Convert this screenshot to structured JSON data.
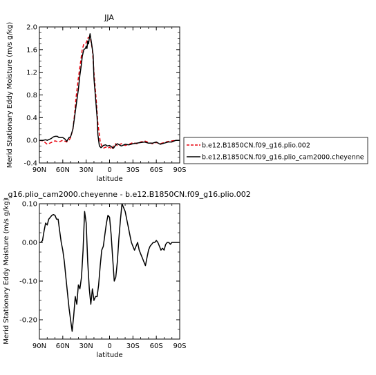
{
  "chart_data": [
    {
      "type": "line",
      "title": "JJA",
      "xlabel": "latitude",
      "ylabel": "Merid Stationary Eddy Moisture (m/s g/kg)",
      "xlim": [
        90,
        -90
      ],
      "ylim": [
        -0.4,
        2.0
      ],
      "xticks": [
        90,
        60,
        30,
        0,
        -30,
        -60,
        -90
      ],
      "xtick_labels": [
        "90N",
        "60N",
        "30N",
        "0",
        "30S",
        "60S",
        "90S"
      ],
      "yticks": [
        -0.4,
        0.0,
        0.4,
        0.8,
        1.2,
        1.6,
        2.0
      ],
      "ytick_labels": [
        "-0.4",
        "0.0",
        "0.4",
        "0.8",
        "1.2",
        "1.6",
        "2.0"
      ],
      "legend_position": "right",
      "series": [
        {
          "name": "b.e12.B1850CN.f09_g16.plio.002",
          "color": "#e8000b",
          "dash": "dashed",
          "x": [
            90,
            85,
            80,
            75,
            70,
            65,
            60,
            55,
            52,
            50,
            47,
            45,
            43,
            40,
            37,
            35,
            33,
            30,
            28,
            25,
            22,
            20,
            17,
            15,
            12,
            10,
            8,
            5,
            2,
            0,
            -3,
            -5,
            -8,
            -10,
            -15,
            -20,
            -25,
            -30,
            -35,
            -40,
            -45,
            -50,
            -55,
            -60,
            -65,
            -70,
            -75,
            -80,
            -85,
            -90
          ],
          "y": [
            0.0,
            -0.01,
            -0.07,
            -0.04,
            -0.01,
            -0.03,
            0.0,
            -0.03,
            0.0,
            0.05,
            0.2,
            0.45,
            0.75,
            1.1,
            1.4,
            1.6,
            1.7,
            1.72,
            1.8,
            1.83,
            1.6,
            1.2,
            0.7,
            0.3,
            -0.02,
            -0.1,
            -0.14,
            -0.12,
            -0.14,
            -0.12,
            -0.16,
            -0.1,
            -0.06,
            -0.1,
            -0.06,
            -0.09,
            -0.07,
            -0.04,
            -0.06,
            -0.03,
            -0.01,
            -0.04,
            -0.06,
            -0.04,
            -0.06,
            -0.04,
            -0.02,
            -0.01,
            0.0,
            0.0
          ]
        },
        {
          "name": "b.e12.B1850CN.f09_g16.plio_cam2000.cheyenne",
          "color": "#000000",
          "dash": "solid",
          "x": [
            90,
            85,
            82,
            80,
            75,
            72,
            70,
            67,
            65,
            62,
            60,
            57,
            55,
            52,
            50,
            47,
            45,
            43,
            40,
            38,
            36,
            35,
            33,
            31,
            30,
            29,
            28,
            27,
            26,
            25,
            23,
            21,
            20,
            18,
            16,
            15,
            13,
            11,
            10,
            8,
            5,
            3,
            0,
            -3,
            -5,
            -8,
            -10,
            -15,
            -20,
            -25,
            -30,
            -35,
            -40,
            -45,
            -50,
            -55,
            -60,
            -65,
            -70,
            -75,
            -80,
            -85,
            -90
          ],
          "y": [
            0.0,
            0.0,
            0.01,
            0.0,
            0.03,
            0.06,
            0.07,
            0.07,
            0.05,
            0.05,
            0.05,
            0.02,
            -0.02,
            0.05,
            0.06,
            0.2,
            0.4,
            0.6,
            0.9,
            1.15,
            1.35,
            1.48,
            1.6,
            1.62,
            1.66,
            1.62,
            1.75,
            1.7,
            1.8,
            1.88,
            1.7,
            1.5,
            1.1,
            0.75,
            0.4,
            0.1,
            -0.1,
            -0.13,
            -0.12,
            -0.09,
            -0.08,
            -0.1,
            -0.09,
            -0.12,
            -0.14,
            -0.08,
            -0.06,
            -0.1,
            -0.07,
            -0.08,
            -0.06,
            -0.05,
            -0.04,
            -0.03,
            -0.05,
            -0.05,
            -0.03,
            -0.07,
            -0.05,
            -0.03,
            -0.03,
            0.0,
            0.0
          ]
        }
      ]
    },
    {
      "type": "line",
      "title": "_g16.plio_cam2000.cheyenne - b.e12.B1850CN.f09_g16.plio.002",
      "xlabel": "latitude",
      "ylabel": "Merid Stationary Eddy Moisture (m/s g/kg)",
      "xlim": [
        90,
        -90
      ],
      "ylim": [
        -0.25,
        0.1
      ],
      "xticks": [
        90,
        60,
        30,
        0,
        -30,
        -60,
        -90
      ],
      "xtick_labels": [
        "90N",
        "60N",
        "30N",
        "0",
        "30S",
        "60S",
        "90S"
      ],
      "yticks": [
        -0.2,
        -0.1,
        0.0,
        0.1
      ],
      "ytick_labels": [
        "-0.20",
        "-0.10",
        "0.00",
        "0.10"
      ],
      "series": [
        {
          "color": "#000000",
          "x": [
            90,
            88,
            86,
            84,
            82,
            80,
            78,
            76,
            74,
            72,
            70,
            68,
            66,
            64,
            62,
            60,
            58,
            56,
            54,
            52,
            50,
            48,
            46,
            44,
            42,
            40,
            38,
            36,
            34,
            32,
            30,
            28,
            26,
            24,
            22,
            20,
            18,
            16,
            14,
            12,
            10,
            8,
            6,
            4,
            2,
            0,
            -2,
            -4,
            -6,
            -8,
            -10,
            -12,
            -14,
            -16,
            -18,
            -20,
            -22,
            -24,
            -26,
            -28,
            -30,
            -32,
            -34,
            -36,
            -38,
            -40,
            -42,
            -44,
            -46,
            -48,
            -50,
            -52,
            -54,
            -56,
            -58,
            -60,
            -62,
            -64,
            -66,
            -68,
            -70,
            -72,
            -74,
            -76,
            -78,
            -80,
            -82,
            -84,
            -86,
            -88,
            -90
          ],
          "y": [
            0.0,
            0.0,
            0.005,
            0.03,
            0.05,
            0.045,
            0.06,
            0.065,
            0.07,
            0.072,
            0.07,
            0.06,
            0.06,
            0.03,
            0.0,
            -0.02,
            -0.05,
            -0.09,
            -0.13,
            -0.17,
            -0.2,
            -0.23,
            -0.19,
            -0.14,
            -0.16,
            -0.11,
            -0.12,
            -0.09,
            -0.02,
            0.08,
            0.05,
            -0.05,
            -0.12,
            -0.16,
            -0.12,
            -0.15,
            -0.14,
            -0.14,
            -0.11,
            -0.06,
            -0.02,
            -0.01,
            0.02,
            0.05,
            0.07,
            0.065,
            0.02,
            -0.04,
            -0.1,
            -0.09,
            -0.05,
            0.01,
            0.06,
            0.1,
            0.09,
            0.08,
            0.06,
            0.04,
            0.02,
            0.0,
            -0.01,
            -0.02,
            -0.01,
            0.0,
            -0.02,
            -0.03,
            -0.04,
            -0.05,
            -0.06,
            -0.04,
            -0.02,
            -0.01,
            -0.005,
            0.0,
            0.0,
            0.005,
            0.0,
            -0.01,
            -0.02,
            -0.015,
            -0.02,
            -0.005,
            0.0,
            0.0,
            -0.005,
            0.0,
            0.0,
            0.0,
            0.0,
            0.0,
            0.0
          ]
        }
      ]
    }
  ]
}
